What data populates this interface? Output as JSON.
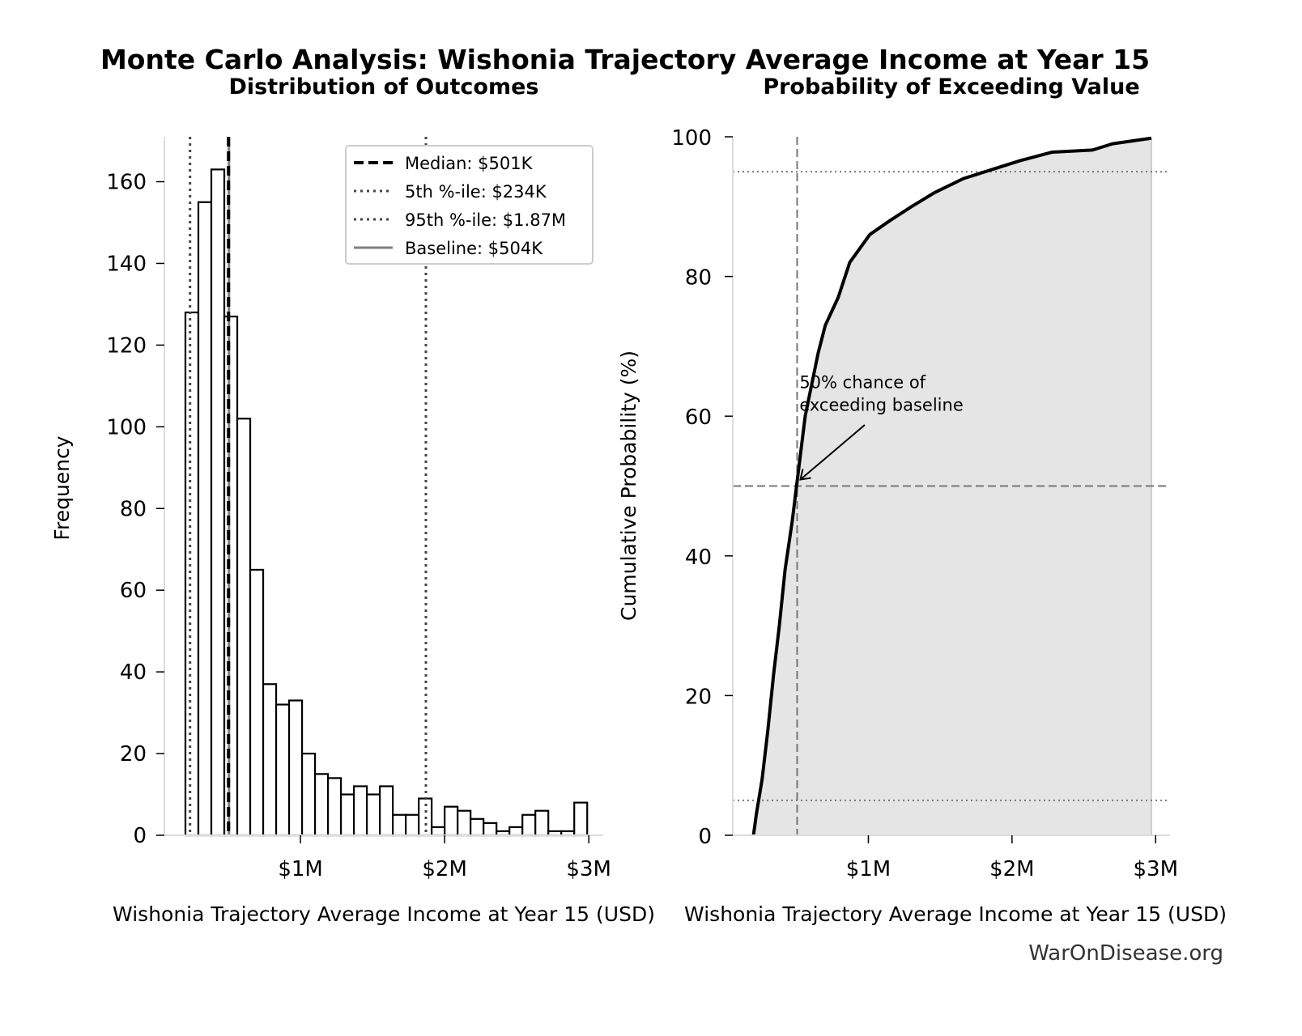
{
  "title": "Monte Carlo Analysis: Wishonia Trajectory Average Income at Year 15",
  "watermark": "WarOnDisease.org",
  "chart_data": [
    {
      "type": "bar",
      "subtype": "histogram",
      "title": "Distribution of Outcomes",
      "xlabel": "Wishonia Trajectory Average Income at Year 15 (USD)",
      "ylabel": "Frequency",
      "x_unit": "USD millions",
      "bin_start": 0.202,
      "bin_width": 0.0899,
      "values": [
        128,
        155,
        163,
        127,
        102,
        65,
        37,
        32,
        33,
        20,
        15,
        14,
        10,
        12,
        10,
        12,
        5,
        5,
        9,
        2,
        7,
        6,
        4,
        3,
        1,
        2,
        5,
        6,
        1,
        1,
        8
      ],
      "xlim": [
        0.056,
        3.1
      ],
      "ylim": [
        0,
        171
      ],
      "xticks": [
        {
          "v": 1,
          "label": "$1M"
        },
        {
          "v": 2,
          "label": "$2M"
        },
        {
          "v": 3,
          "label": "$3M"
        }
      ],
      "yticks": [
        0,
        20,
        40,
        60,
        80,
        100,
        120,
        140,
        160
      ],
      "grid": false,
      "bar_fill": "#ffffff",
      "bar_edge": "#000000",
      "vlines": [
        {
          "x": 0.501,
          "style": "dashed",
          "color": "#000000",
          "label": "Median: $501K"
        },
        {
          "x": 0.234,
          "style": "dotted",
          "color": "#444444",
          "label": "5th %-ile: $234K"
        },
        {
          "x": 1.87,
          "style": "dotted",
          "color": "#444444",
          "label": "95th %-ile: $1.87M"
        },
        {
          "x": 0.504,
          "style": "solid",
          "color": "#808080",
          "label": "Baseline: $504K"
        }
      ],
      "legend_position": "top-right"
    },
    {
      "type": "area",
      "title": "Probability of Exceeding Value",
      "xlabel": "Wishonia Trajectory Average Income at Year 15 (USD)",
      "ylabel": "Cumulative Probability (%)",
      "x_unit": "USD millions",
      "x": [
        0.2,
        0.22,
        0.26,
        0.3,
        0.34,
        0.38,
        0.42,
        0.47,
        0.5,
        0.56,
        0.65,
        0.7,
        0.79,
        0.87,
        1.01,
        1.15,
        1.3,
        1.46,
        1.66,
        1.89,
        2.06,
        2.28,
        2.56,
        2.7,
        2.97
      ],
      "y": [
        0,
        3,
        8,
        15,
        23,
        30,
        38,
        45,
        50,
        60,
        69,
        73,
        77,
        82,
        86,
        88,
        90,
        92,
        94,
        95.5,
        96.6,
        97.8,
        98.1,
        99,
        99.8
      ],
      "xlim": [
        0.056,
        3.1
      ],
      "ylim": [
        0,
        100
      ],
      "xticks": [
        {
          "v": 1,
          "label": "$1M"
        },
        {
          "v": 2,
          "label": "$2M"
        },
        {
          "v": 3,
          "label": "$3M"
        }
      ],
      "yticks": [
        0,
        20,
        40,
        60,
        80,
        100
      ],
      "grid": false,
      "line_color": "#000000",
      "fill_color": "#e5e5e5",
      "hlines": [
        {
          "y": 5,
          "style": "dotted"
        },
        {
          "y": 50,
          "style": "dashed"
        },
        {
          "y": 95,
          "style": "dotted"
        }
      ],
      "vline": {
        "x": 0.504,
        "style": "dashed"
      },
      "annotation": {
        "lines": [
          "50% chance of",
          "exceeding baseline"
        ],
        "text_x": 0.52,
        "text_y": 64,
        "arrow_x": 0.504,
        "arrow_y": 50
      }
    }
  ]
}
